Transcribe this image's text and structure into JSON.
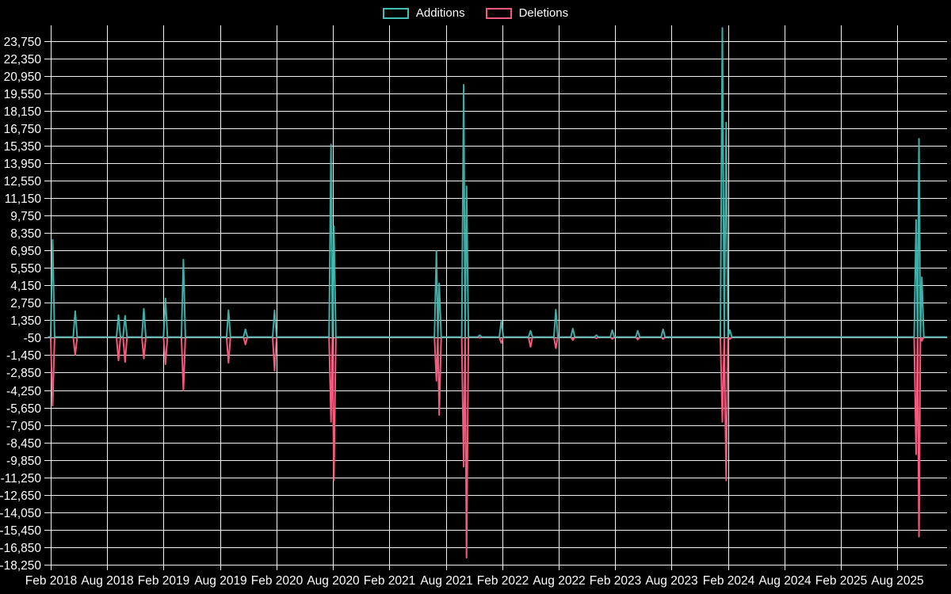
{
  "colors": {
    "background": "#000000",
    "grid": "#F1F1F1",
    "axis_text": "#FFFFFF",
    "additions": "#45BCB4",
    "deletions": "#F45A7D"
  },
  "chart_data": {
    "type": "line",
    "title": "",
    "legend_position": "top",
    "ylim": [
      -18250,
      23750
    ],
    "y_tick_step": 1400,
    "baseline_value": 0,
    "xlim_months": [
      -0.3,
      95.3
    ],
    "series": [
      {
        "name": "Additions",
        "key": "additions",
        "color": "#45BCB4"
      },
      {
        "name": "Deletions",
        "key": "deletions",
        "color": "#F45A7D"
      }
    ],
    "y_ticks": [
      {
        "v": 23750,
        "label": "23,750"
      },
      {
        "v": 22350,
        "label": "22,350"
      },
      {
        "v": 20950,
        "label": "20,950"
      },
      {
        "v": 19550,
        "label": "19,550"
      },
      {
        "v": 18150,
        "label": "18,150"
      },
      {
        "v": 16750,
        "label": "16,750"
      },
      {
        "v": 15350,
        "label": "15,350"
      },
      {
        "v": 13950,
        "label": "13,950"
      },
      {
        "v": 12550,
        "label": "12,550"
      },
      {
        "v": 11150,
        "label": "11,150"
      },
      {
        "v": 9750,
        "label": "9,750"
      },
      {
        "v": 8350,
        "label": "8,350"
      },
      {
        "v": 6950,
        "label": "6,950"
      },
      {
        "v": 5550,
        "label": "5,550"
      },
      {
        "v": 4150,
        "label": "4,150"
      },
      {
        "v": 2750,
        "label": "2,750"
      },
      {
        "v": 1350,
        "label": "1,350"
      },
      {
        "v": -50,
        "label": "-50"
      },
      {
        "v": -1450,
        "label": "-1,450"
      },
      {
        "v": -2850,
        "label": "-2,850"
      },
      {
        "v": -4250,
        "label": "-4,250"
      },
      {
        "v": -5650,
        "label": "-5,650"
      },
      {
        "v": -7050,
        "label": "-7,050"
      },
      {
        "v": -8450,
        "label": "-8,450"
      },
      {
        "v": -9850,
        "label": "-9,850"
      },
      {
        "v": -11250,
        "label": "-11,250"
      },
      {
        "v": -12650,
        "label": "-12,650"
      },
      {
        "v": -14050,
        "label": "-14,050"
      },
      {
        "v": -15450,
        "label": "-15,450"
      },
      {
        "v": -16850,
        "label": "-16,850"
      },
      {
        "v": -18250,
        "label": "-18,250"
      }
    ],
    "x_ticks": [
      {
        "m": 0,
        "label": "Feb 2018"
      },
      {
        "m": 6,
        "label": "Aug 2018"
      },
      {
        "m": 12,
        "label": "Feb 2019"
      },
      {
        "m": 18,
        "label": "Aug 2019"
      },
      {
        "m": 24,
        "label": "Feb 2020"
      },
      {
        "m": 30,
        "label": "Aug 2020"
      },
      {
        "m": 36,
        "label": "Feb 2021"
      },
      {
        "m": 42,
        "label": "Aug 2021"
      },
      {
        "m": 48,
        "label": "Feb 2022"
      },
      {
        "m": 54,
        "label": "Aug 2022"
      },
      {
        "m": 60,
        "label": "Feb 2023"
      },
      {
        "m": 66,
        "label": "Aug 2023"
      },
      {
        "m": 72,
        "label": "Feb 2024"
      },
      {
        "m": 78,
        "label": "Aug 2024"
      },
      {
        "m": 84,
        "label": "Feb 2025"
      },
      {
        "m": 90,
        "label": "Aug 2025"
      }
    ],
    "events": [
      {
        "m": 0.2,
        "additions": 7800,
        "deletions": -5500
      },
      {
        "m": 2.6,
        "additions": 2080,
        "deletions": -1450
      },
      {
        "m": 7.2,
        "additions": 1760,
        "deletions": -1880
      },
      {
        "m": 7.9,
        "additions": 1700,
        "deletions": -2000
      },
      {
        "m": 9.9,
        "additions": 2270,
        "deletions": -1730
      },
      {
        "m": 12.2,
        "additions": 3100,
        "deletions": -2180
      },
      {
        "m": 14.1,
        "additions": 6220,
        "deletions": -4280
      },
      {
        "m": 18.9,
        "additions": 2160,
        "deletions": -2060
      },
      {
        "m": 20.7,
        "additions": 620,
        "deletions": -590
      },
      {
        "m": 23.8,
        "additions": 2150,
        "deletions": -2700
      },
      {
        "m": 29.8,
        "additions": 15450,
        "deletions": -6800
      },
      {
        "m": 30.1,
        "additions": 8900,
        "deletions": -11500
      },
      {
        "m": 41.0,
        "additions": 6900,
        "deletions": -3500
      },
      {
        "m": 41.3,
        "additions": 4300,
        "deletions": -6250
      },
      {
        "m": 43.9,
        "additions": 20240,
        "deletions": -10400
      },
      {
        "m": 44.2,
        "additions": 12100,
        "deletions": -17700
      },
      {
        "m": 45.6,
        "additions": 150,
        "deletions": -60
      },
      {
        "m": 47.9,
        "additions": 1320,
        "deletions": -480
      },
      {
        "m": 51.0,
        "additions": 500,
        "deletions": -780
      },
      {
        "m": 53.7,
        "additions": 2200,
        "deletions": -900
      },
      {
        "m": 55.5,
        "additions": 680,
        "deletions": -250
      },
      {
        "m": 58.0,
        "additions": 150,
        "deletions": -100
      },
      {
        "m": 59.7,
        "additions": 560,
        "deletions": -150
      },
      {
        "m": 62.4,
        "additions": 500,
        "deletions": -200
      },
      {
        "m": 65.1,
        "additions": 620,
        "deletions": -150
      },
      {
        "m": 71.4,
        "additions": 24800,
        "deletions": -6800
      },
      {
        "m": 71.8,
        "additions": 17200,
        "deletions": -11500
      },
      {
        "m": 72.2,
        "additions": 550,
        "deletions": -150
      },
      {
        "m": 92.0,
        "additions": 9400,
        "deletions": -9400
      },
      {
        "m": 92.3,
        "additions": 15900,
        "deletions": -16000
      },
      {
        "m": 92.6,
        "additions": 4800,
        "deletions": -300
      }
    ]
  }
}
